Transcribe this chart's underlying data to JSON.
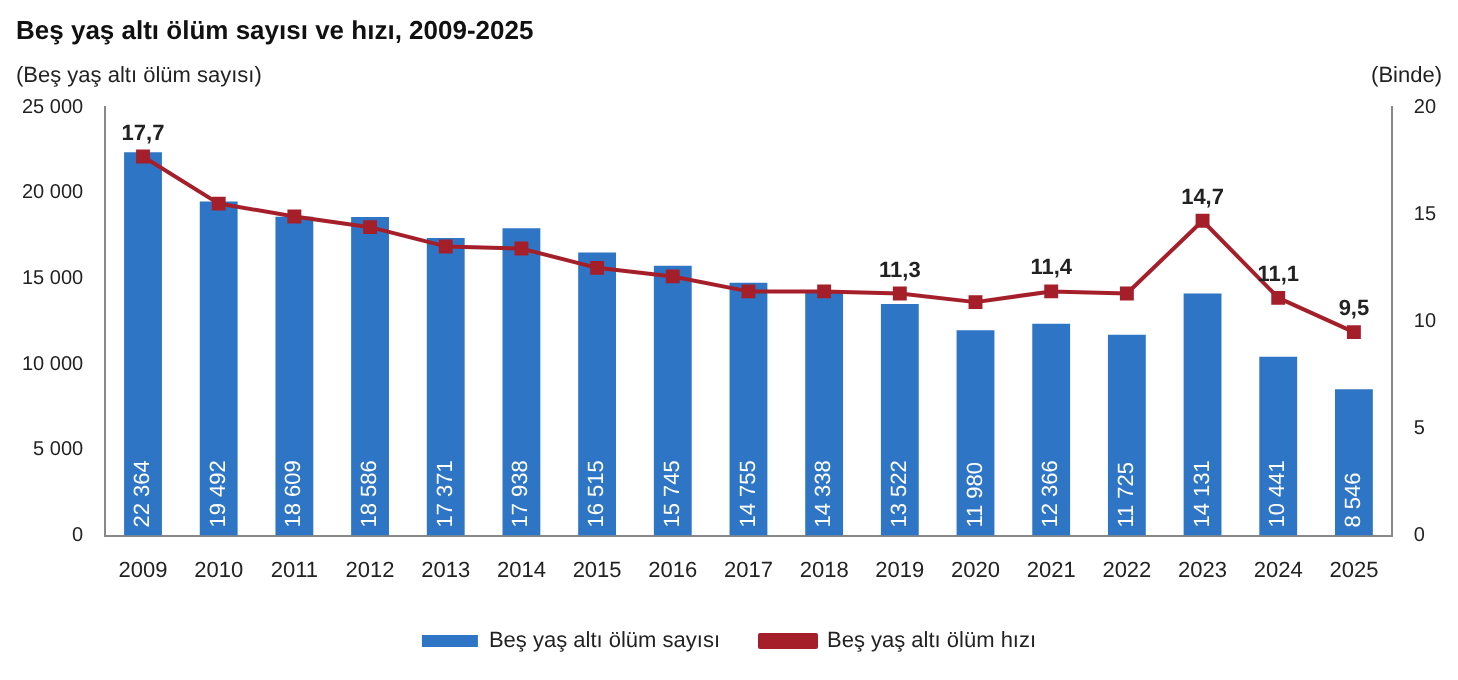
{
  "chart_data": {
    "type": "bar",
    "title": "Beş yaş altı ölüm sayısı ve hızı, 2009-2025",
    "ylabel": "(Beş yaş altı ölüm sayısı)",
    "y2label": "(Binde)",
    "categories": [
      "2009",
      "2010",
      "2011",
      "2012",
      "2013",
      "2014",
      "2015",
      "2016",
      "2017",
      "2018",
      "2019",
      "2020",
      "2021",
      "2022",
      "2023",
      "2024",
      "2025"
    ],
    "series": [
      {
        "name": "Beş yaş altı ölüm sayısı",
        "color": "#2e75c6",
        "values": [
          22364,
          19492,
          18609,
          18586,
          17371,
          17938,
          16515,
          15745,
          14755,
          14338,
          13522,
          11980,
          12366,
          11725,
          14131,
          10441,
          8546
        ],
        "value_labels": [
          "22 364",
          "19 492",
          "18 609",
          "18 586",
          "17 371",
          "17 938",
          "16 515",
          "15 745",
          "14 755",
          "14 338",
          "13 522",
          "11 980",
          "12 366",
          "11 725",
          "14 131",
          "10 441",
          "8 546"
        ]
      },
      {
        "name": "Beş yaş altı ölüm hızı",
        "type": "line",
        "axis": "y2",
        "color": "#a51f2b",
        "marker": "square",
        "line_style": "solid",
        "values": [
          17.7,
          15.5,
          14.9,
          14.4,
          13.5,
          13.4,
          12.5,
          12.1,
          11.4,
          11.4,
          11.3,
          10.9,
          11.4,
          11.3,
          14.7,
          11.1,
          9.5
        ],
        "value_labels": [
          "17,7",
          null,
          null,
          null,
          null,
          null,
          null,
          null,
          null,
          null,
          "11,3",
          null,
          "11,4",
          null,
          "14,7",
          "11,1",
          "9,5"
        ]
      }
    ],
    "ylim": [
      0,
      25000
    ],
    "yticks": [
      0,
      {
        "value": 5000,
        "label": "5 000"
      },
      {
        "value": 10000,
        "label": "10 000"
      },
      {
        "value": 15000,
        "label": "15 000"
      },
      {
        "value": 20000,
        "label": "20 000"
      },
      {
        "value": 25000,
        "label": "25 000"
      }
    ],
    "y2lim": [
      0,
      20
    ],
    "y2ticks": [
      0,
      5,
      10,
      15,
      20
    ],
    "grid": false,
    "legend": "bottom"
  }
}
